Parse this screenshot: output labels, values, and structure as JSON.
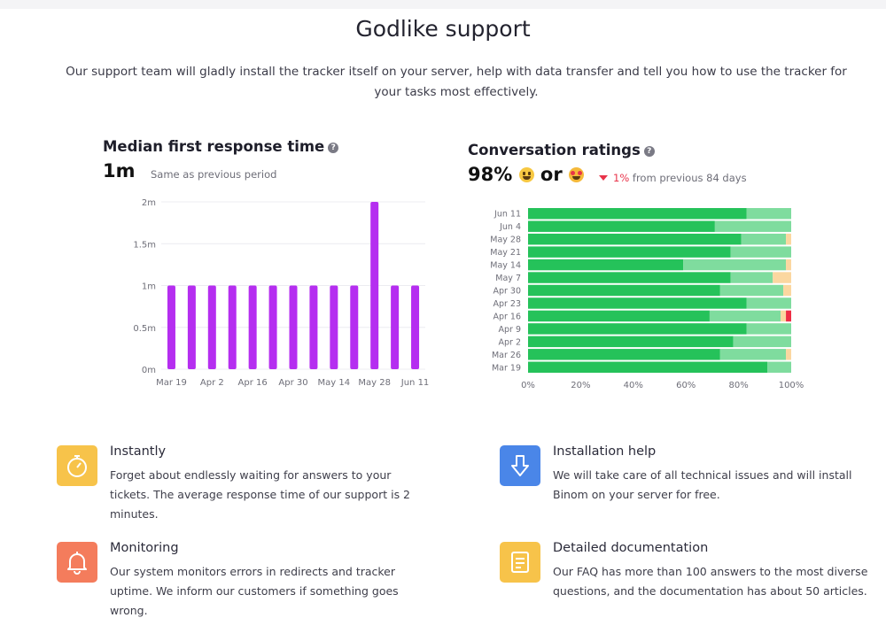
{
  "page": {
    "title": "Godlike support",
    "intro": "Our support team will gladly install the tracker itself on your server, help with data transfer and tell you how to use the tracker for your tasks most effectively."
  },
  "left_panel": {
    "title": "Median first response time",
    "value": "1m",
    "comparison": "Same as previous period"
  },
  "right_panel": {
    "title": "Conversation ratings",
    "value": "98%",
    "or_text": "or",
    "change": "1%",
    "change_suffix": "from previous 84 days"
  },
  "chart_data": [
    {
      "type": "bar",
      "categories": [
        "Mar 19",
        "",
        "Apr 2",
        "",
        "Apr 16",
        "",
        "Apr 30",
        "",
        "May 14",
        "",
        "May 28",
        "",
        "Jun 11"
      ],
      "x_tick_labels": [
        "Mar 19",
        "Apr 2",
        "Apr 16",
        "Apr 30",
        "May 14",
        "May 28",
        "Jun 11"
      ],
      "y_tick_labels": [
        "0m",
        "0.5m",
        "1m",
        "1.5m",
        "2m"
      ],
      "values": [
        1,
        1,
        1,
        1,
        1,
        1,
        1,
        1,
        1,
        1,
        2,
        1,
        1
      ],
      "ylim": [
        0,
        2
      ],
      "unit": "minutes",
      "color": "#b52ef0",
      "grid": true
    },
    {
      "type": "bar",
      "orientation": "horizontal-stacked-100",
      "categories": [
        "Jun 11",
        "Jun 4",
        "May 28",
        "May 21",
        "May 14",
        "May 7",
        "Apr 30",
        "Apr 23",
        "Apr 16",
        "Apr 9",
        "Apr 2",
        "Mar 26",
        "Mar 19"
      ],
      "x_tick_labels": [
        "0%",
        "20%",
        "40%",
        "60%",
        "80%",
        "100%"
      ],
      "xlim": [
        0,
        100
      ],
      "series": [
        {
          "color": "#25c25a",
          "values": [
            83,
            71,
            81,
            77,
            59,
            77,
            73,
            83,
            69,
            83,
            78,
            73,
            91
          ]
        },
        {
          "color": "#7fdc9e",
          "values": [
            17,
            29,
            17,
            23,
            39,
            16,
            24,
            17,
            27,
            17,
            22,
            25,
            9
          ]
        },
        {
          "color": "#fbd7a0",
          "values": [
            0,
            0,
            2,
            0,
            2,
            7,
            3,
            0,
            2,
            0,
            0,
            2,
            0
          ]
        },
        {
          "color": "#ee2e45",
          "values": [
            0,
            0,
            0,
            0,
            0,
            0,
            0,
            0,
            2,
            0,
            0,
            0,
            0
          ]
        }
      ]
    }
  ],
  "features": [
    {
      "title": "Instantly",
      "desc": "Forget about endlessly waiting for answers to your tickets. The average response time of our support is 2 minutes.",
      "icon": "stopwatch-icon",
      "color": "#f7c34a"
    },
    {
      "title": "Installation help",
      "desc": "We will take care of all technical issues and will install Binom on your server for free.",
      "icon": "download-arrow-icon",
      "color": "#4a86e8"
    },
    {
      "title": "Monitoring",
      "desc": "Our system monitors errors in redirects and tracker uptime. We inform our customers if something goes wrong.",
      "icon": "bell-icon",
      "color": "#f47c5c"
    },
    {
      "title": "Detailed documentation",
      "desc": "Our FAQ has more than 100 answers to the most diverse questions, and the documentation has about 50 articles.",
      "icon": "document-icon",
      "color": "#f7c34a"
    }
  ]
}
